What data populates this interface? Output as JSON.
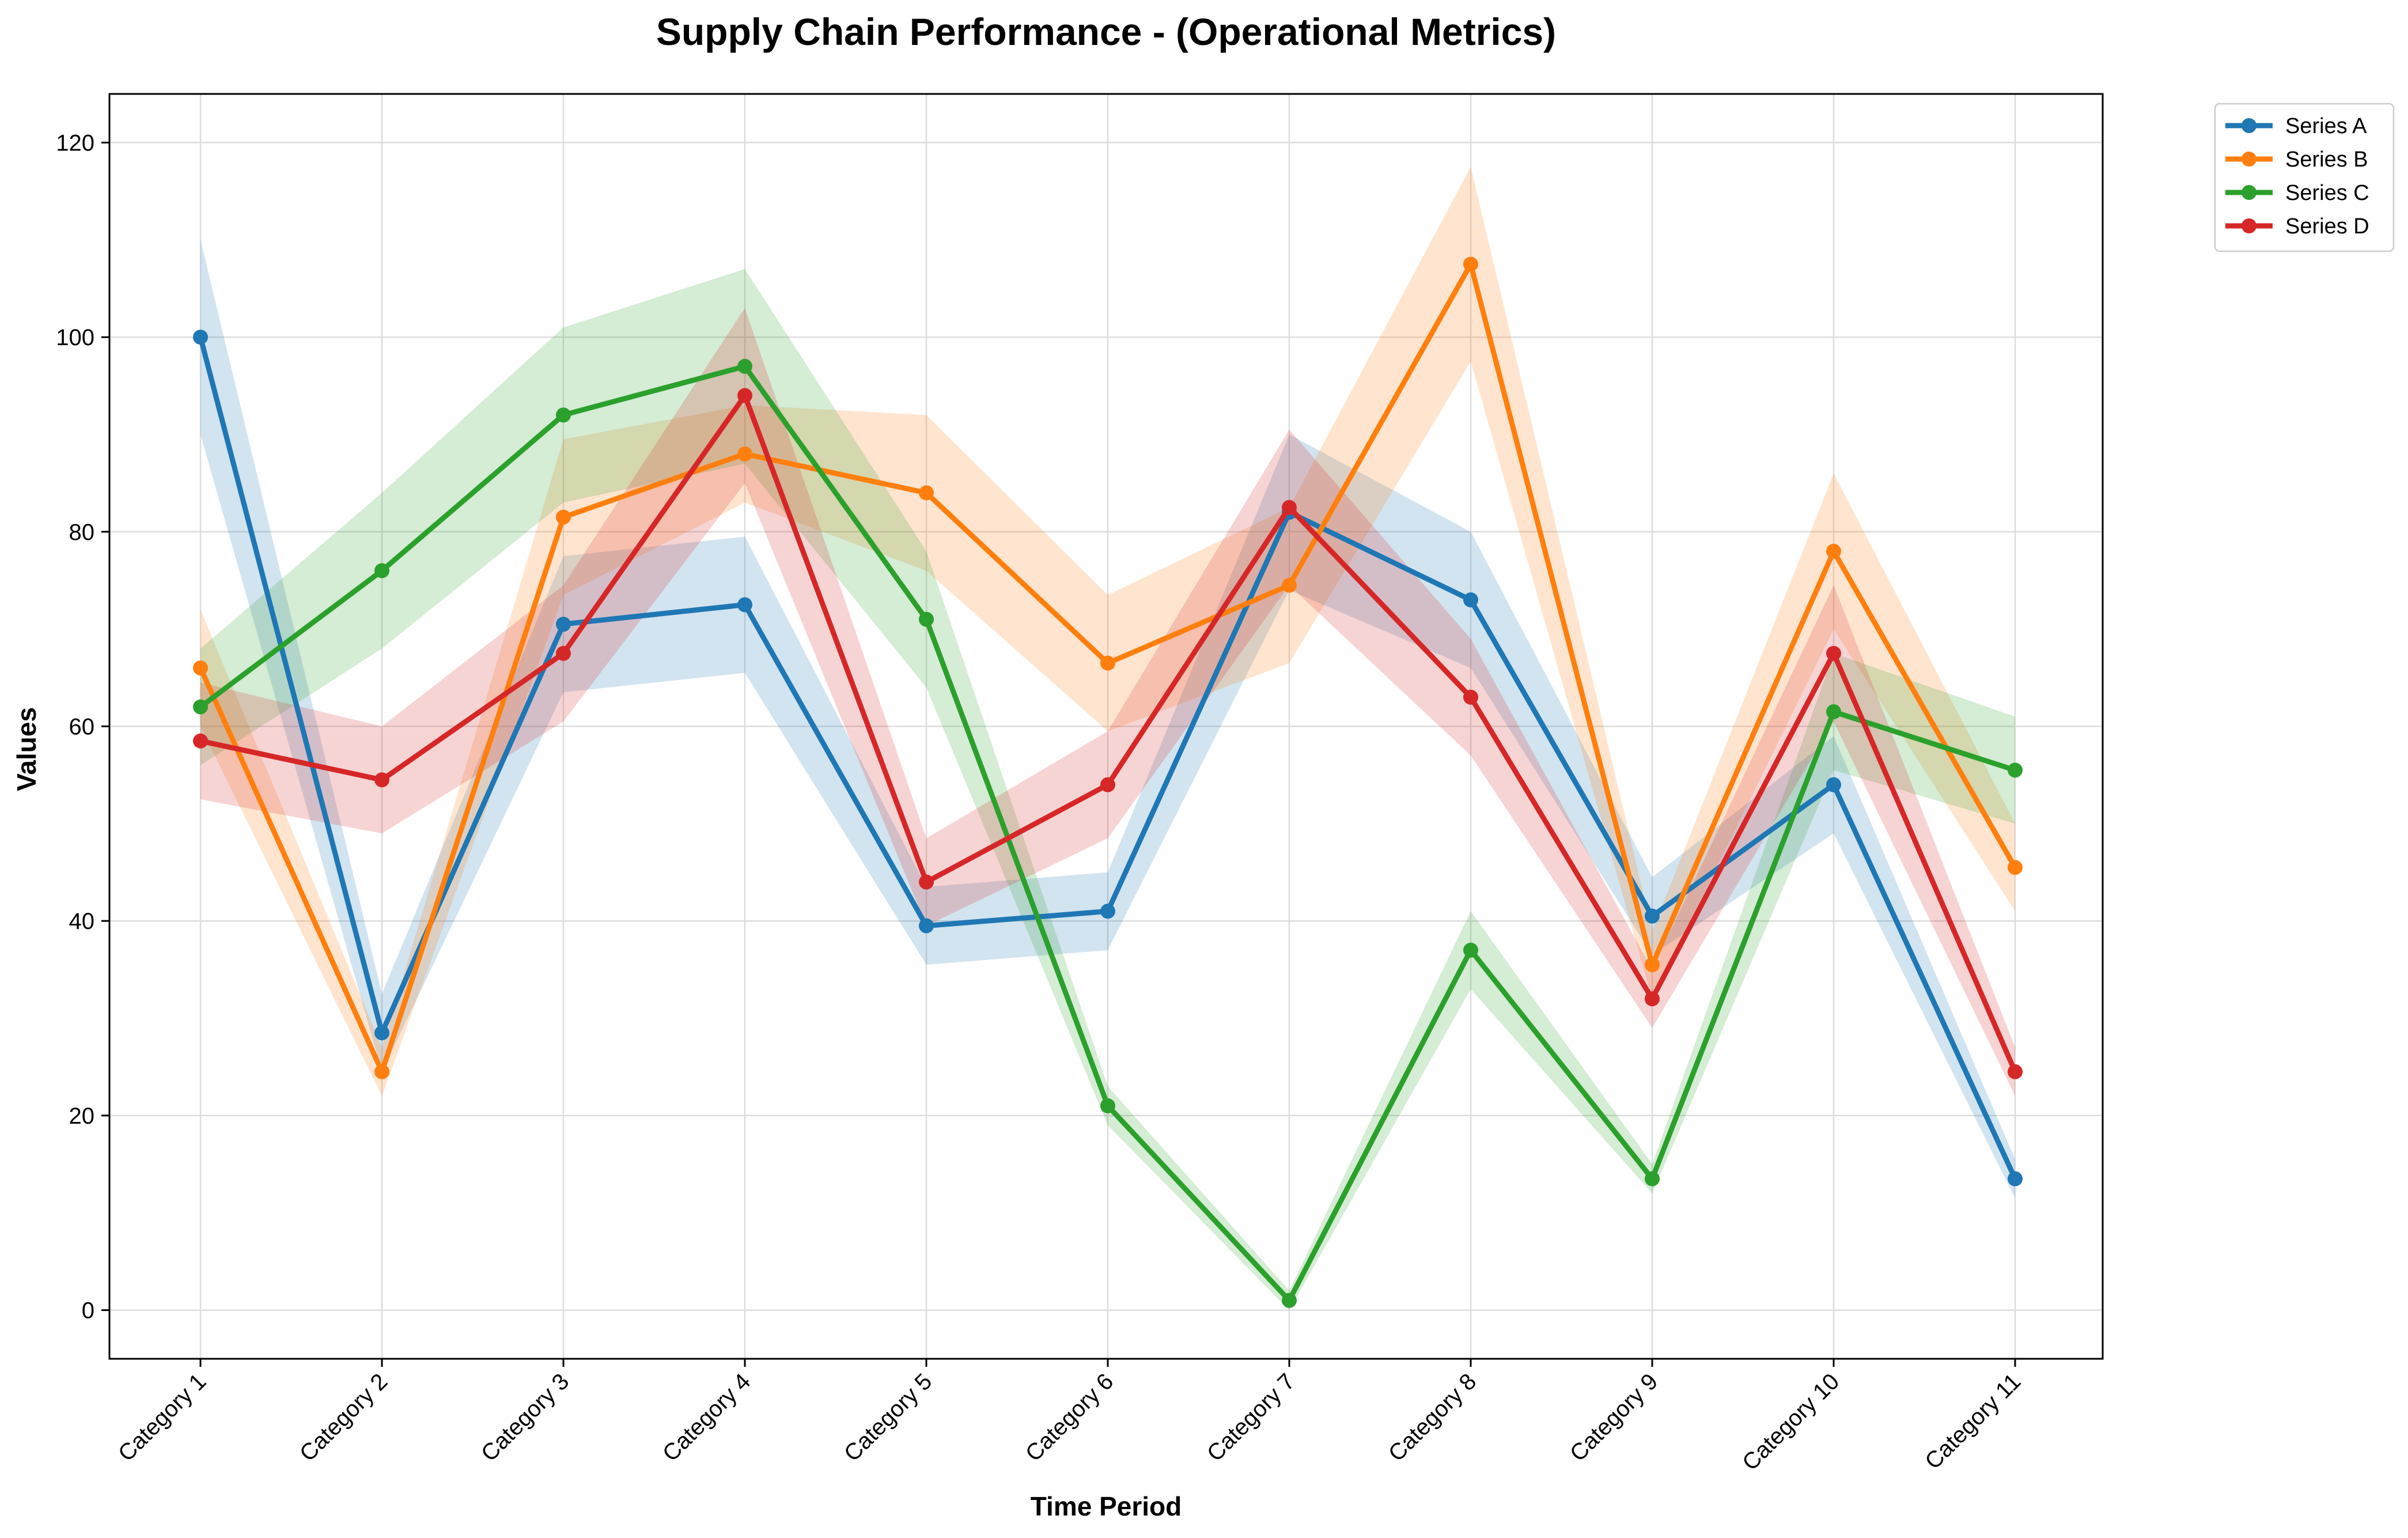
{
  "chart_data": {
    "type": "line",
    "title": "Supply Chain Performance - (Operational Metrics)",
    "xlabel": "Time Period",
    "ylabel": "Values",
    "categories": [
      "Category 1",
      "Category 2",
      "Category 3",
      "Category 4",
      "Category 5",
      "Category 6",
      "Category 7",
      "Category 8",
      "Category 9",
      "Category 10",
      "Category 11"
    ],
    "ylim": [
      -5,
      125
    ],
    "yticks": [
      "0",
      "20",
      "40",
      "60",
      "80",
      "100",
      "120"
    ],
    "grid": true,
    "legend_position": "top-right",
    "series": [
      {
        "name": "Series A",
        "color": "#1f77b4",
        "values": [
          100,
          28.5,
          70.5,
          72.5,
          39.5,
          41,
          82,
          73,
          40.5,
          54,
          13.5
        ],
        "band": [
          10,
          4,
          7,
          7,
          4,
          4,
          8,
          7,
          4,
          5,
          2
        ]
      },
      {
        "name": "Series B",
        "color": "#ff7f0e",
        "values": [
          66,
          24.5,
          81.5,
          88,
          84,
          66.5,
          74.5,
          107.5,
          35.5,
          78,
          45.5
        ],
        "band": [
          6,
          2.5,
          8,
          5,
          8,
          7,
          8,
          10,
          3.5,
          8,
          4.5
        ]
      },
      {
        "name": "Series C",
        "color": "#2ca02c",
        "values": [
          62,
          76,
          92,
          97,
          71,
          21,
          1,
          37,
          13.5,
          61.5,
          55.5
        ],
        "band": [
          6,
          8,
          9,
          10,
          7,
          2,
          1,
          4,
          1.5,
          6,
          5.5
        ]
      },
      {
        "name": "Series D",
        "color": "#d62728",
        "values": [
          58.5,
          54.5,
          67.5,
          94,
          44,
          54,
          82.5,
          63,
          32,
          67.5,
          24.5
        ],
        "band": [
          6,
          5.5,
          7,
          9,
          4.5,
          5.5,
          8,
          6,
          3,
          7,
          2.5
        ]
      }
    ]
  }
}
